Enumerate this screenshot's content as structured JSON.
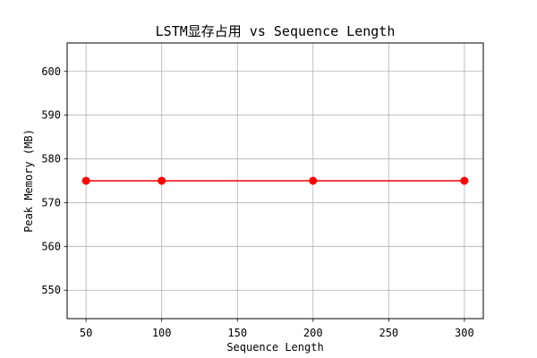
{
  "chart_data": {
    "type": "line",
    "title": "LSTM显存占用 vs Sequence Length",
    "xlabel": "Sequence Length",
    "ylabel": "Peak Memory (MB)",
    "x": [
      50,
      100,
      200,
      300
    ],
    "series": [
      {
        "values": [
          575,
          575,
          575,
          575
        ],
        "color": "#ff0000",
        "marker": "circle"
      }
    ],
    "xlim": [
      37.5,
      312.5
    ],
    "ylim": [
      543.5,
      606.5
    ],
    "xticks": [
      50,
      100,
      150,
      200,
      250,
      300
    ],
    "yticks": [
      550,
      560,
      570,
      580,
      590,
      600
    ],
    "grid": true
  }
}
